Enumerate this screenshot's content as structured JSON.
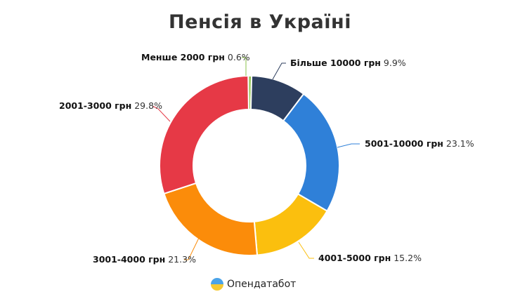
{
  "title": "Пенсія в Україні",
  "brand": "Опендатабот",
  "chart_data": {
    "type": "pie",
    "subtype": "donut",
    "title": "Пенсія в Україні",
    "unit": "%",
    "categories": [
      "Менше 2000 грн",
      "Більше 10000 грн",
      "5001-10000 грн",
      "4001-5000 грн",
      "3001-4000 грн",
      "2001-3000 грн"
    ],
    "values": [
      0.6,
      9.9,
      23.1,
      15.2,
      21.3,
      29.8
    ],
    "colors": [
      "#8bc34a",
      "#2d3e5e",
      "#2f80d8",
      "#fbbf0e",
      "#fb8c0a",
      "#e63946"
    ],
    "labels": [
      {
        "name": "Менше 2000 грн",
        "pct": "0.6%"
      },
      {
        "name": "Більше 10000 грн",
        "pct": "9.9%"
      },
      {
        "name": "5001-10000 грн",
        "pct": "23.1%"
      },
      {
        "name": "4001-5000 грн",
        "pct": "15.2%"
      },
      {
        "name": "3001-4000 грн",
        "pct": "21.3%"
      },
      {
        "name": "2001-3000 грн",
        "pct": "29.8%"
      }
    ],
    "legend": "none (outside labels with leader lines)"
  }
}
